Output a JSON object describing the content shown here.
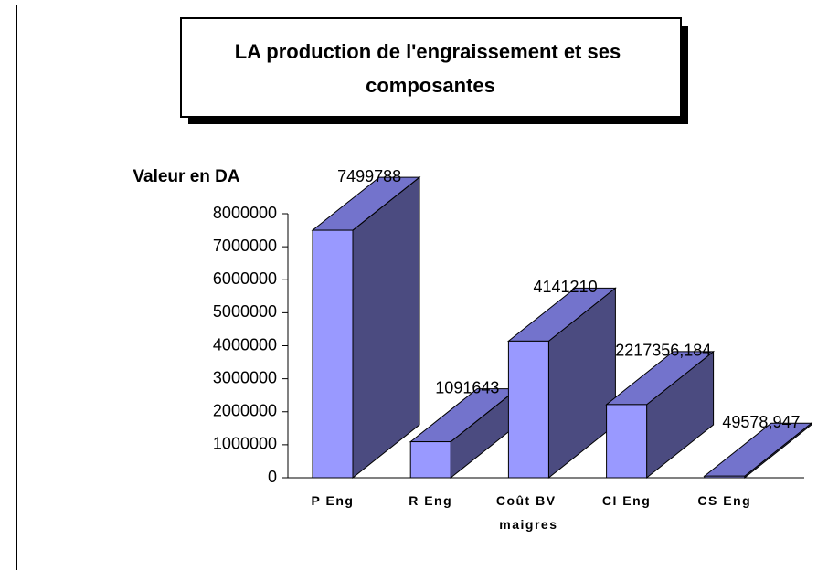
{
  "chart_data": {
    "type": "bar3d",
    "title": "LA production de l'engraissement et ses composantes",
    "y_axis_label": "Valeur en DA",
    "categories": [
      "P Eng",
      "R Eng",
      "Coût BV maigres",
      "CI Eng",
      "CS Eng"
    ],
    "values": [
      7499788,
      1091643,
      4141210,
      2217356.184,
      49578.947
    ],
    "value_labels": [
      "7499788",
      "1091643",
      "4141210",
      "2217356,184",
      "49578,947"
    ],
    "colors": {
      "front": "#9999ff",
      "top": "#7373cc",
      "side": "#4b4b80"
    },
    "ylim": [
      0,
      8000000
    ],
    "yticks": [
      0,
      1000000,
      2000000,
      3000000,
      4000000,
      5000000,
      6000000,
      7000000,
      8000000
    ]
  }
}
